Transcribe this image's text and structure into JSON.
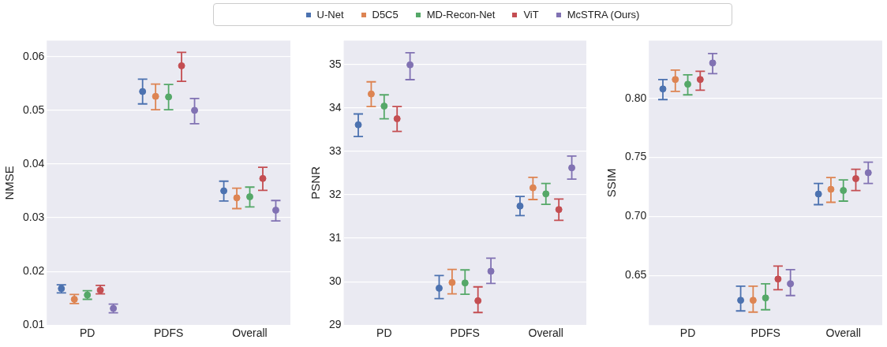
{
  "chart_data": [
    {
      "type": "scatter",
      "ylabel": "NMSE",
      "categories": [
        "PD",
        "PDFS",
        "Overall"
      ],
      "ylim": [
        0.01,
        0.063
      ],
      "yticks": [
        0.01,
        0.02,
        0.03,
        0.04,
        0.05,
        0.06
      ],
      "grid": "y",
      "legend": "top",
      "series": [
        {
          "name": "U-Net",
          "color": "#4c72b0",
          "values": [
            0.0168,
            0.0535,
            0.035
          ],
          "errors": [
            [
              0.016,
              0.0175
            ],
            [
              0.0512,
              0.0558
            ],
            [
              0.0331,
              0.0368
            ]
          ]
        },
        {
          "name": "D5C5",
          "color": "#dd8452",
          "values": [
            0.0148,
            0.0526,
            0.0337
          ],
          "errors": [
            [
              0.014,
              0.0157
            ],
            [
              0.0501,
              0.0549
            ],
            [
              0.0317,
              0.0355
            ]
          ]
        },
        {
          "name": "MD-Recon-Net",
          "color": "#55a868",
          "values": [
            0.0156,
            0.0525,
            0.0339
          ],
          "errors": [
            [
              0.0148,
              0.0164
            ],
            [
              0.0501,
              0.0548
            ],
            [
              0.032,
              0.0357
            ]
          ]
        },
        {
          "name": "ViT",
          "color": "#c44e52",
          "values": [
            0.0165,
            0.0583,
            0.0373
          ],
          "errors": [
            [
              0.0158,
              0.0174
            ],
            [
              0.0554,
              0.0608
            ],
            [
              0.0351,
              0.0394
            ]
          ]
        },
        {
          "name": "McSTRA (Ours)",
          "color": "#8172b3",
          "values": [
            0.0131,
            0.05,
            0.0314
          ],
          "errors": [
            [
              0.0123,
              0.0139
            ],
            [
              0.0475,
              0.0522
            ],
            [
              0.0294,
              0.0332
            ]
          ]
        }
      ]
    },
    {
      "type": "scatter",
      "ylabel": "PSNR",
      "categories": [
        "PD",
        "PDFS",
        "Overall"
      ],
      "ylim": [
        29,
        35.55
      ],
      "yticks": [
        29,
        30,
        31,
        32,
        33,
        34,
        35
      ],
      "grid": "y",
      "series": [
        {
          "color": "#4c72b0",
          "values": [
            33.61,
            29.85,
            31.74
          ],
          "errors": [
            [
              33.34,
              33.86
            ],
            [
              29.61,
              30.14
            ],
            [
              31.52,
              31.96
            ]
          ]
        },
        {
          "color": "#dd8452",
          "values": [
            34.32,
            29.98,
            32.16
          ],
          "errors": [
            [
              34.03,
              34.6
            ],
            [
              29.72,
              30.28
            ],
            [
              31.89,
              32.4
            ]
          ]
        },
        {
          "color": "#55a868",
          "values": [
            34.04,
            29.97,
            32.02
          ],
          "errors": [
            [
              33.75,
              34.3
            ],
            [
              29.71,
              30.27
            ],
            [
              31.78,
              32.26
            ]
          ]
        },
        {
          "color": "#c44e52",
          "values": [
            33.75,
            29.56,
            31.66
          ],
          "errors": [
            [
              33.46,
              34.03
            ],
            [
              29.29,
              29.88
            ],
            [
              31.41,
              31.9
            ]
          ]
        },
        {
          "color": "#8172b3",
          "values": [
            34.99,
            30.24,
            32.62
          ],
          "errors": [
            [
              34.65,
              35.27
            ],
            [
              29.96,
              30.54
            ],
            [
              32.36,
              32.89
            ]
          ]
        }
      ]
    },
    {
      "type": "scatter",
      "ylabel": "SSIM",
      "categories": [
        "PD",
        "PDFS",
        "Overall"
      ],
      "ylim": [
        0.608,
        0.849
      ],
      "yticks": [
        {
          "value": 0.65,
          "label": "0.65"
        },
        {
          "value": 0.7,
          "label": "0.70"
        },
        {
          "value": 0.75,
          "label": "0.75"
        },
        {
          "value": 0.8,
          "label": "0.80"
        }
      ],
      "grid": "y",
      "series": [
        {
          "color": "#4c72b0",
          "values": [
            0.808,
            0.629,
            0.719
          ],
          "errors": [
            [
              0.799,
              0.816
            ],
            [
              0.62,
              0.641
            ],
            [
              0.71,
              0.728
            ]
          ]
        },
        {
          "color": "#dd8452",
          "values": [
            0.816,
            0.629,
            0.723
          ],
          "errors": [
            [
              0.806,
              0.824
            ],
            [
              0.619,
              0.641
            ],
            [
              0.712,
              0.733
            ]
          ]
        },
        {
          "color": "#55a868",
          "values": [
            0.812,
            0.631,
            0.722
          ],
          "errors": [
            [
              0.803,
              0.82
            ],
            [
              0.621,
              0.643
            ],
            [
              0.713,
              0.731
            ]
          ]
        },
        {
          "color": "#c44e52",
          "values": [
            0.816,
            0.647,
            0.732
          ],
          "errors": [
            [
              0.807,
              0.823
            ],
            [
              0.638,
              0.658
            ],
            [
              0.722,
              0.74
            ]
          ]
        },
        {
          "color": "#8172b3",
          "values": [
            0.83,
            0.643,
            0.737
          ],
          "errors": [
            [
              0.821,
              0.838
            ],
            [
              0.633,
              0.655
            ],
            [
              0.728,
              0.746
            ]
          ]
        }
      ]
    }
  ]
}
